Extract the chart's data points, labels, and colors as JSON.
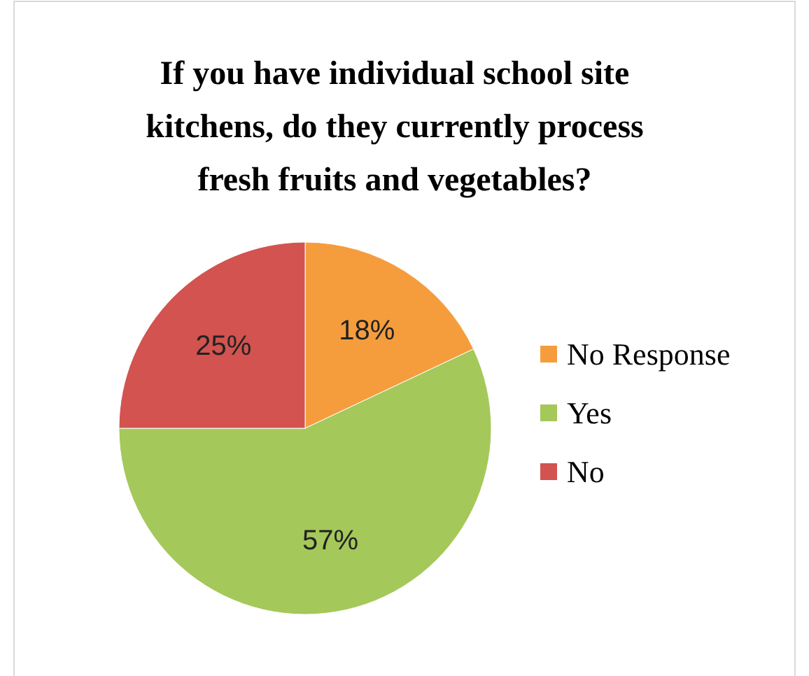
{
  "chart_data": {
    "type": "pie",
    "title": "If you have individual school site kitchens, do they currently process fresh fruits and vegetables?",
    "categories": [
      "No Response",
      "Yes",
      "No"
    ],
    "values": [
      18,
      57,
      25
    ],
    "colors": [
      "#f59d3d",
      "#a5c85a",
      "#d2534f"
    ],
    "value_labels": [
      "18%",
      "57%",
      "25%"
    ],
    "legend": "right"
  }
}
